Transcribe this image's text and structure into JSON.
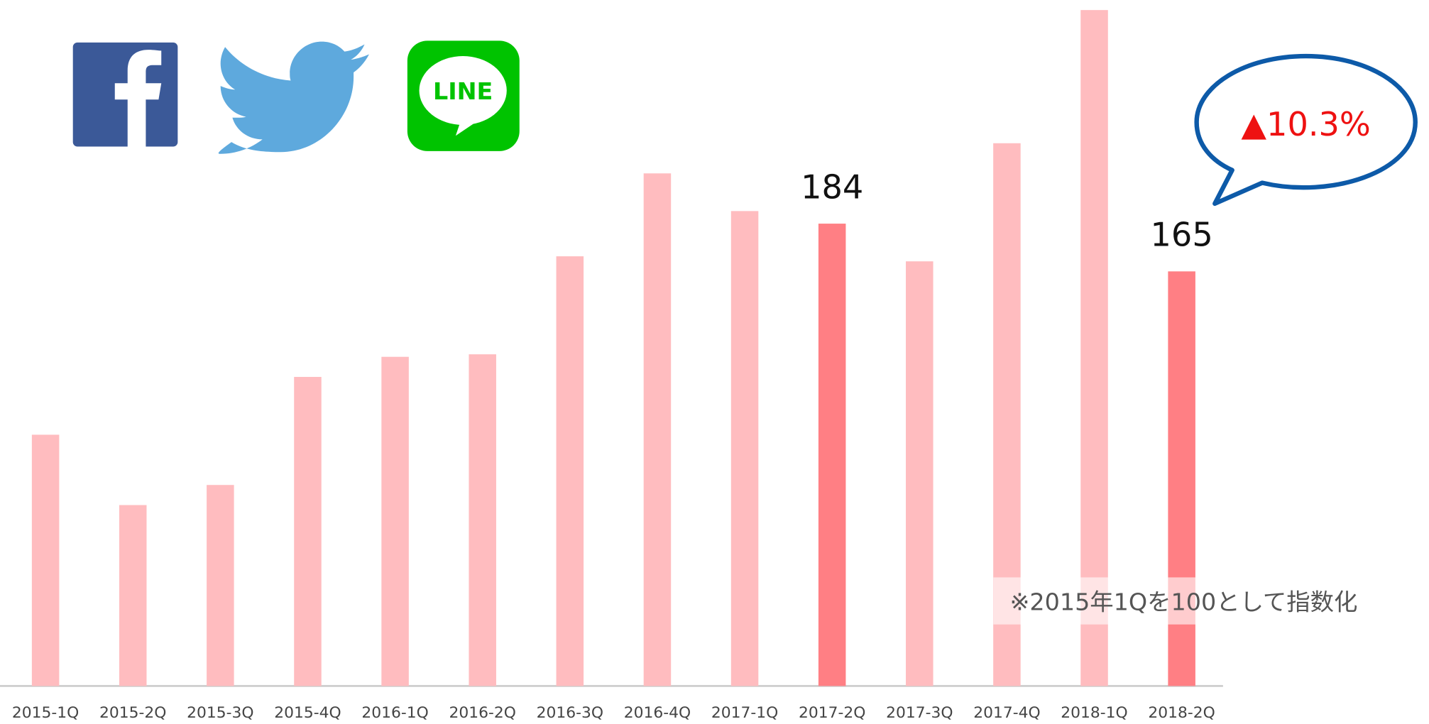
{
  "chart_data": {
    "type": "bar",
    "categories": [
      "2015-1Q",
      "2015-2Q",
      "2015-3Q",
      "2015-4Q",
      "2016-1Q",
      "2016-2Q",
      "2016-3Q",
      "2016-4Q",
      "2017-1Q",
      "2017-2Q",
      "2017-3Q",
      "2017-4Q",
      "2018-1Q",
      "2018-2Q"
    ],
    "values": [
      100,
      72,
      80,
      123,
      131,
      132,
      171,
      204,
      189,
      184,
      169,
      216,
      269,
      165
    ],
    "value_labels": [
      null,
      null,
      null,
      null,
      null,
      null,
      null,
      null,
      null,
      "184",
      null,
      null,
      null,
      "165"
    ],
    "colors": [
      "#ffbcbf",
      "#ffbcbf",
      "#ffbcbf",
      "#ffbcbf",
      "#ffbcbf",
      "#ffbcbf",
      "#ffbcbf",
      "#ffbcbf",
      "#ffbcbf",
      "#ff7f84",
      "#ffbcbf",
      "#ffbcbf",
      "#ffbcbf",
      "#ff7f84"
    ],
    "ylim": [
      0,
      273
    ],
    "annotations": [
      "▲10.3%",
      "※2015年1Qを100として指数化"
    ],
    "logo_text": "LINE"
  }
}
